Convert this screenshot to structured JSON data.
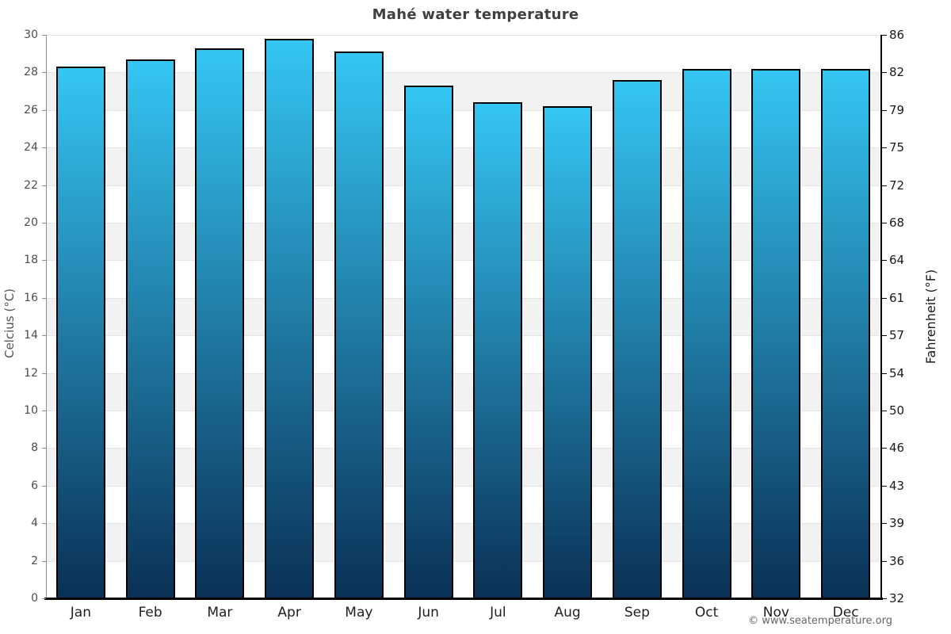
{
  "title": "Mahé water temperature",
  "footer": "© www.seatemperature.org",
  "colors": {
    "bar_top": "#35c6f3",
    "bar_bottom": "#0a3055",
    "bar_border": "#000000",
    "band_fill": "#f2f2f2",
    "band_alt_fill": "#ffffff",
    "gridline": "#e4e4e4",
    "left_axis": "#8c8c8c",
    "main_axis": "#000000",
    "title_color": "#404040",
    "left_tick_color": "#4d4d4d",
    "right_tick_color": "#1a1a1a",
    "month_label_color": "#1f1f1f",
    "footer_color": "#666666"
  },
  "chart_data": {
    "type": "bar",
    "title": "Mahé water temperature",
    "categories": [
      "Jan",
      "Feb",
      "Mar",
      "Apr",
      "May",
      "Jun",
      "Jul",
      "Aug",
      "Sep",
      "Oct",
      "Nov",
      "Dec"
    ],
    "values": [
      28.3,
      28.7,
      29.3,
      29.8,
      29.1,
      27.3,
      26.4,
      26.2,
      27.6,
      28.2,
      28.2,
      28.2
    ],
    "unit": "°C",
    "xlabel": "",
    "ylabel_left": "Celcius (°C)",
    "ylabel_right": "Fahrenheit (°F)",
    "ylim": [
      0,
      30
    ],
    "ytick_step_celsius": 2,
    "yticks_celsius": [
      0,
      2,
      4,
      6,
      8,
      10,
      12,
      14,
      16,
      18,
      20,
      22,
      24,
      26,
      28,
      30
    ],
    "yticks_fahrenheit_labels": [
      "32",
      "36",
      "39",
      "43",
      "46",
      "50",
      "54",
      "57",
      "61",
      "64",
      "68",
      "72",
      "75",
      "79",
      "82",
      "86"
    ],
    "grid": "alternating 2-degree horizontal bands",
    "legend": "none"
  }
}
